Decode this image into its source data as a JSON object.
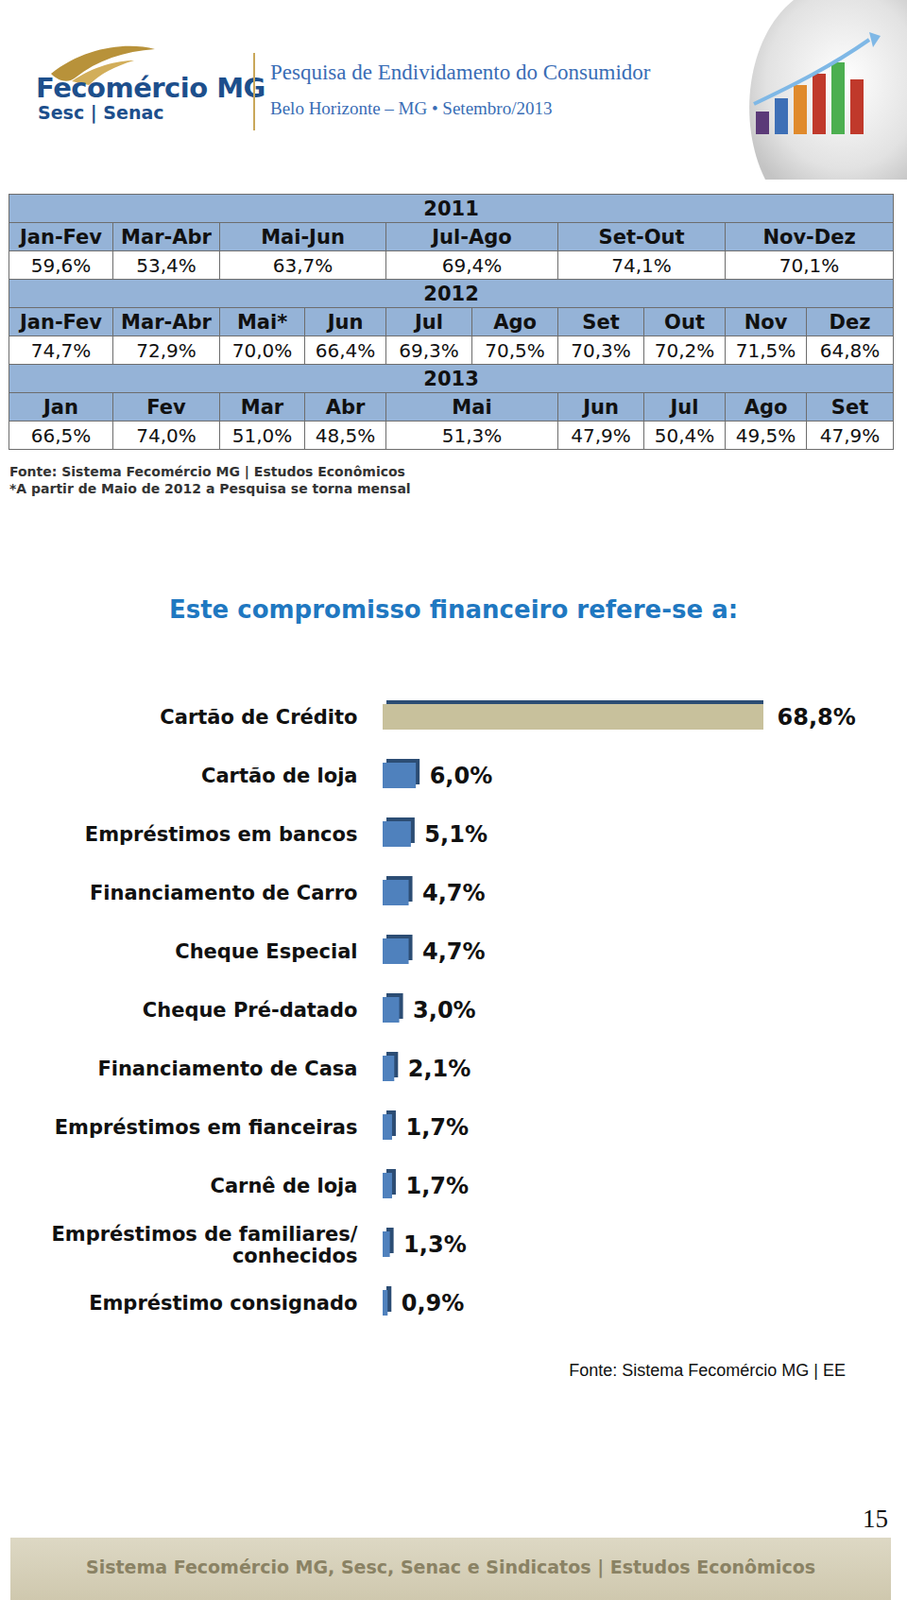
{
  "header": {
    "logo": {
      "name": "Fecomércio MG",
      "sub": "Sesc | Senac"
    },
    "title": "Pesquisa de Endividamento do Consumidor",
    "subtitle": "Belo Horizonte – MG • Setembro/2013"
  },
  "table": {
    "blocks": [
      {
        "year": "2011",
        "periods": [
          "Jan-Fev",
          "Mar-Abr",
          "Mai-Jun",
          "Jul-Ago",
          "Set-Out",
          "Nov-Dez"
        ],
        "values": [
          "59,6%",
          "53,4%",
          "63,7%",
          "69,4%",
          "74,1%",
          "70,1%"
        ]
      },
      {
        "year": "2012",
        "periods": [
          "Jan-Fev",
          "Mar-Abr",
          "Mai*",
          "Jun",
          "Jul",
          "Ago",
          "Set",
          "Out",
          "Nov",
          "Dez"
        ],
        "values": [
          "74,7%",
          "72,9%",
          "70,0%",
          "66,4%",
          "69,3%",
          "70,5%",
          "70,3%",
          "70,2%",
          "71,5%",
          "64,8%"
        ]
      },
      {
        "year": "2013",
        "periods": [
          "Jan",
          "Fev",
          "Mar",
          "Abr",
          "Mai",
          "Jun",
          "Jul",
          "Ago",
          "Set"
        ],
        "values": [
          "66,5%",
          "74,0%",
          "51,0%",
          "48,5%",
          "51,3%",
          "47,9%",
          "50,4%",
          "49,5%",
          "47,9%"
        ]
      }
    ],
    "source": "Fonte: Sistema Fecomércio MG | Estudos Econômicos",
    "note": "*A partir de Maio de 2012 a Pesquisa se torna mensal"
  },
  "chart_data": {
    "type": "bar",
    "orientation": "horizontal",
    "title": "Este compromisso financeiro refere-se a:",
    "categories": [
      "Cartão de Crédito",
      "Cartão de loja",
      "Empréstimos em bancos",
      "Financiamento de Carro",
      "Cheque Especial",
      "Cheque Pré-datado",
      "Financiamento de Casa",
      "Empréstimos em fianceiras",
      "Carnê de loja",
      "Empréstimos de familiares/ conhecidos",
      "Empréstimo consignado"
    ],
    "values": [
      68.8,
      6.0,
      5.1,
      4.7,
      4.7,
      3.0,
      2.1,
      1.7,
      1.7,
      1.3,
      0.9
    ],
    "value_labels": [
      "68,8%",
      "6,0%",
      "5,1%",
      "4,7%",
      "4,7%",
      "3,0%",
      "2,1%",
      "1,7%",
      "1,7%",
      "1,3%",
      "0,9%"
    ],
    "colors": [
      "#c8c19c",
      "#4f81bd",
      "#4f81bd",
      "#4f81bd",
      "#4f81bd",
      "#4f81bd",
      "#4f81bd",
      "#4f81bd",
      "#4f81bd",
      "#4f81bd",
      "#4f81bd"
    ],
    "xlim": [
      0,
      68.8
    ],
    "data_labels": true,
    "tick_labels": "y",
    "source": "Fonte: Sistema Fecomércio MG | EE"
  },
  "footer": {
    "text": "Sistema Fecomércio MG, Sesc, Senac e Sindicatos | Estudos Econômicos",
    "page": "15"
  }
}
